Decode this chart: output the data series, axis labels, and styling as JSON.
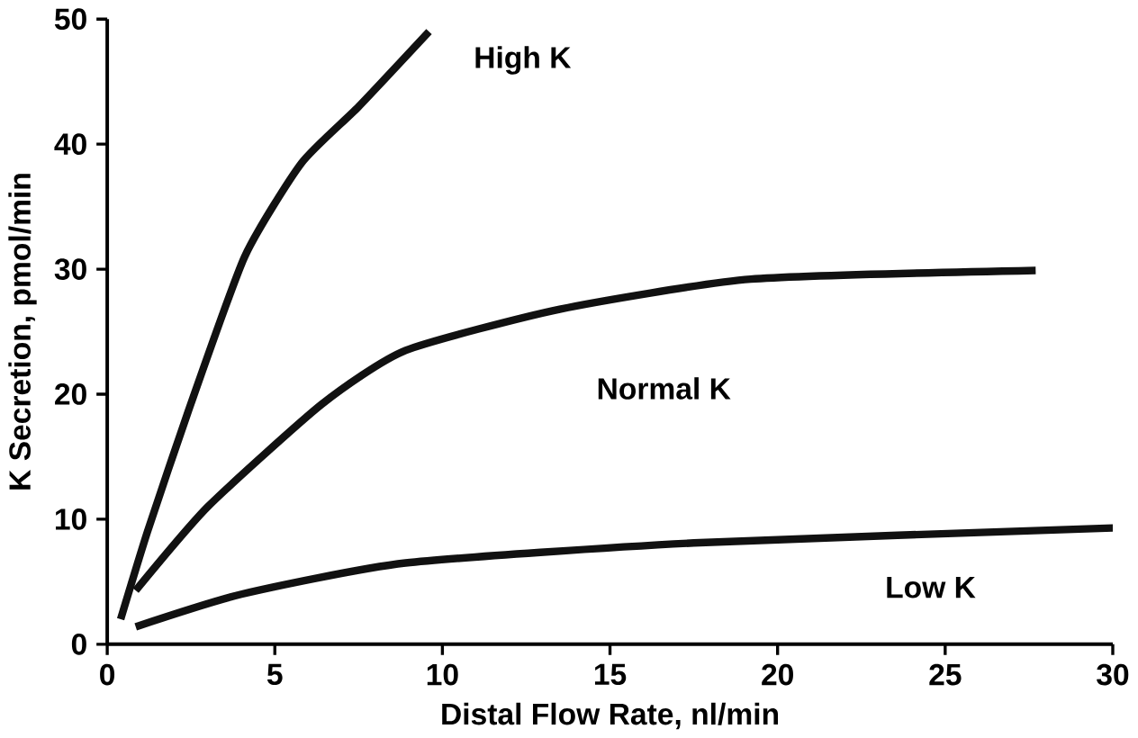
{
  "chart_data": {
    "type": "line",
    "xlabel": "Distal Flow Rate, nl/min",
    "ylabel": "K Secretion, pmol/min",
    "xlim": [
      0,
      30
    ],
    "ylim": [
      0,
      50
    ],
    "xticks": [
      0,
      5,
      10,
      15,
      20,
      25,
      30
    ],
    "yticks": [
      0,
      10,
      20,
      30,
      40,
      50
    ],
    "grid": false,
    "legend": false,
    "marker": "none",
    "line_style": "solid",
    "series": [
      {
        "name": "High K",
        "color": "#111111",
        "x": [
          0.4,
          1.2,
          2.4,
          4.1,
          5.8,
          7.5,
          9.6
        ],
        "values": [
          2,
          9,
          18.5,
          31,
          38.5,
          43,
          49
        ]
      },
      {
        "name": "Normal K",
        "color": "#111111",
        "x": [
          0.85,
          3,
          6.4,
          8.9,
          13.5,
          19.2,
          27.7
        ],
        "values": [
          4.3,
          11,
          19.2,
          23.5,
          26.8,
          29.2,
          29.9
        ]
      },
      {
        "name": "Low K",
        "color": "#111111",
        "x": [
          0.85,
          4,
          8.9,
          17.5,
          30
        ],
        "values": [
          1.4,
          4,
          6.5,
          8.1,
          9.3
        ]
      }
    ]
  }
}
